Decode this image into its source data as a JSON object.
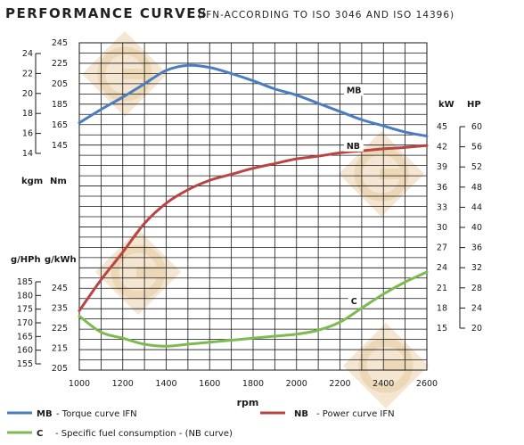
{
  "title": "PERFORMANCE CURVES",
  "subtitle": "(IFN-ACCORDING TO ISO 3046 AND ISO 14396)",
  "chart_data": {
    "type": "line",
    "x": [
      1000,
      1100,
      1200,
      1300,
      1400,
      1500,
      1600,
      1700,
      1800,
      1900,
      2000,
      2100,
      2200,
      2300,
      2400,
      2500,
      2600
    ],
    "xlabel": "rpm",
    "xlim": [
      1000,
      2600
    ],
    "x_ticks": [
      "1000",
      "1200",
      "1400",
      "1600",
      "1800",
      "2000",
      "2200",
      "2400",
      "2600"
    ],
    "grid": true,
    "series": [
      {
        "name": "MB",
        "axis": "Nm",
        "color": "#4a7cc1",
        "values": [
          167,
          180,
          192,
          205,
          218,
          223,
          221,
          215,
          208,
          200,
          194,
          186,
          178,
          170,
          164,
          158,
          154
        ]
      },
      {
        "name": "NB",
        "axis": "kW",
        "color": "#b84444",
        "values": [
          17.6,
          22.2,
          26.3,
          30.6,
          33.6,
          35.6,
          37.0,
          37.9,
          38.8,
          39.5,
          40.2,
          40.6,
          41.1,
          41.4,
          41.7,
          41.9,
          42.2
        ]
      },
      {
        "name": "C",
        "axis": "g/kWh",
        "color": "#7dba4f",
        "values": [
          231,
          223,
          220,
          217,
          216,
          217,
          218,
          219,
          220,
          221,
          222,
          224,
          228,
          235,
          242,
          248,
          253
        ]
      }
    ],
    "axes": {
      "Nm": {
        "label": "Nm",
        "range": [
          145,
          245
        ],
        "ticks": [
          "145",
          "165",
          "185",
          "205",
          "225",
          "245"
        ]
      },
      "kgm": {
        "label": "kgm",
        "range": [
          14,
          24
        ],
        "ticks": [
          "14",
          "16",
          "18",
          "20",
          "22",
          "24"
        ]
      },
      "g/kWh": {
        "label": "g/kWh",
        "range": [
          205,
          245
        ],
        "ticks": [
          "205",
          "215",
          "225",
          "235",
          "245"
        ]
      },
      "g/HPh": {
        "label": "g/HPh",
        "range": [
          155,
          185
        ],
        "ticks": [
          "155",
          "160",
          "165",
          "170",
          "175",
          "180",
          "185"
        ]
      },
      "kW": {
        "label": "kW",
        "range": [
          15,
          45
        ],
        "ticks": [
          "15",
          "18",
          "21",
          "24",
          "27",
          "30",
          "33",
          "36",
          "39",
          "42",
          "45"
        ]
      },
      "HP": {
        "label": "HP",
        "range": [
          20,
          60
        ],
        "ticks": [
          "20",
          "24",
          "28",
          "32",
          "36",
          "40",
          "44",
          "48",
          "52",
          "56",
          "60"
        ]
      }
    },
    "annotations": [
      {
        "text": "MB",
        "x": 2230,
        "y_axis": "Nm",
        "y": 196
      },
      {
        "text": "NB",
        "x": 2230,
        "y_axis": "kW",
        "y": 41.7
      },
      {
        "text": "C",
        "x": 2250,
        "y_axis": "g/kWh",
        "y": 237
      }
    ],
    "legend": [
      {
        "series": "MB",
        "key": "MB",
        "text": "- Torque curve IFN"
      },
      {
        "series": "NB",
        "key": "NB",
        "text": "- Power curve IFN"
      },
      {
        "series": "C",
        "key": "C",
        "text": "- Specific fuel consumption - (NB curve)"
      }
    ],
    "legend_placement": "bottom"
  }
}
